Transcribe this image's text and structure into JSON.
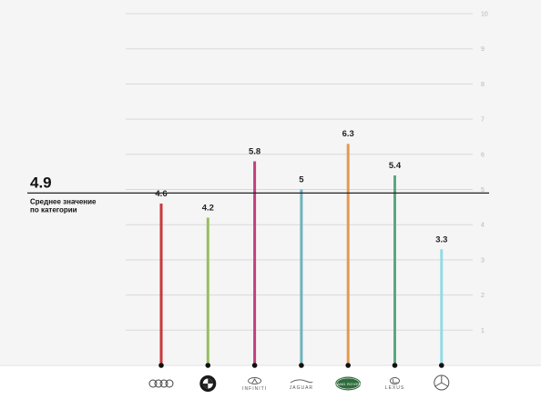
{
  "average": {
    "value": "4.9",
    "caption_line1": "Среднее значение",
    "caption_line2": "по категории",
    "numeric": 4.9
  },
  "colors": {
    "grid": "#d9d9d9",
    "tick": "#b5b5b5",
    "average_line": "#222222",
    "footer": "#ffffff"
  },
  "brands": [
    {
      "icon": "audi-logo-icon",
      "color": "#c8383a"
    },
    {
      "icon": "bmw-logo-icon",
      "color": "#95c05e"
    },
    {
      "icon": "infiniti-logo-icon",
      "color": "#c2407d",
      "text": "INFINITI"
    },
    {
      "icon": "jaguar-logo-icon",
      "color": "#6fb3bd",
      "text": "JAGUAR"
    },
    {
      "icon": "land-rover-logo-icon",
      "color": "#e49a50",
      "text": "LAND ROVER"
    },
    {
      "icon": "lexus-logo-icon",
      "color": "#5aa97f",
      "text": "LEXUS"
    },
    {
      "icon": "mercedes-logo-icon",
      "color": "#92dbe4"
    }
  ],
  "chart_data": {
    "type": "bar",
    "categories": [
      "Audi",
      "BMW",
      "Infiniti",
      "Jaguar",
      "Land Rover",
      "Lexus",
      "Mercedes-Benz"
    ],
    "values": [
      4.6,
      4.2,
      5.8,
      5,
      6.3,
      5.4,
      3.3
    ],
    "value_labels": [
      "4.6",
      "4.2",
      "5.8",
      "5",
      "6.3",
      "5.4",
      "3.3"
    ],
    "yticks": [
      "1",
      "2",
      "3",
      "4",
      "5",
      "6",
      "7",
      "8",
      "9",
      "10"
    ],
    "ylim": [
      0,
      10
    ],
    "reference_line": 4.9,
    "grid": true,
    "title": "",
    "xlabel": "",
    "ylabel": ""
  }
}
